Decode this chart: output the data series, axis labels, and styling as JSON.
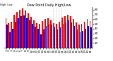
{
  "title": "Dew Point Daily High/Low",
  "background_color": "#ffffff",
  "bar_width": 0.42,
  "ylim": [
    0,
    85
  ],
  "yticks": [
    10,
    20,
    30,
    40,
    50,
    60,
    70,
    80
  ],
  "high_color": "#ff0000",
  "low_color": "#0000ff",
  "dotted_lines": [
    16.5,
    17.5,
    18.5,
    19.5
  ],
  "n_days": 31,
  "highs": [
    62,
    52,
    55,
    70,
    76,
    80,
    82,
    78,
    72,
    65,
    58,
    52,
    50,
    56,
    60,
    62,
    58,
    52,
    50,
    55,
    63,
    67,
    70,
    67,
    60,
    53,
    48,
    50,
    54,
    60,
    56
  ],
  "lows": [
    48,
    32,
    40,
    54,
    62,
    66,
    68,
    62,
    57,
    50,
    44,
    40,
    28,
    38,
    46,
    50,
    48,
    43,
    38,
    43,
    50,
    53,
    57,
    53,
    46,
    38,
    32,
    36,
    40,
    46,
    42
  ],
  "xlabel_fontsize": 2.8,
  "ylabel_fontsize": 3.0,
  "title_fontsize": 3.5,
  "spine_lw": 0.5
}
